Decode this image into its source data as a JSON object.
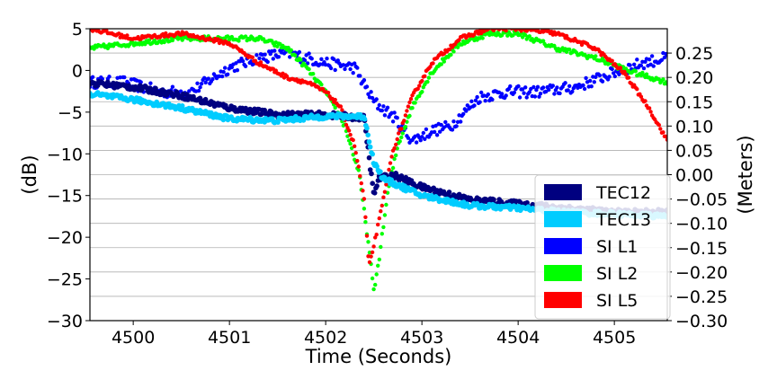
{
  "chart_data": {
    "type": "scatter",
    "xlabel": "Time (Seconds)",
    "ylabel_left": "(dB)",
    "ylabel_right": "(Meters)",
    "xlim": [
      4499.55,
      4505.55
    ],
    "ylim_left": [
      -30,
      5
    ],
    "ylim_right": [
      -0.3,
      0.3
    ],
    "x_ticks": [
      4500,
      4501,
      4502,
      4503,
      4504,
      4505
    ],
    "y_ticks_left": [
      5,
      0,
      -5,
      -10,
      -15,
      -20,
      -25,
      -30
    ],
    "y_ticks_right": [
      0.25,
      0.2,
      0.15,
      0.1,
      0.05,
      0.0,
      -0.05,
      -0.1,
      -0.15,
      -0.2,
      -0.25,
      -0.3
    ],
    "y_tick_labels_left": [
      "5",
      "0",
      "−5",
      "−10",
      "−15",
      "−20",
      "−25",
      "−30"
    ],
    "y_tick_labels_right": [
      "0.25",
      "0.20",
      "0.15",
      "0.10",
      "0.05",
      "0.00",
      "−0.05",
      "−0.10",
      "−0.15",
      "−0.20",
      "−0.25",
      "−0.30"
    ],
    "grid": "horizontal (right axis)",
    "legend_position": "bottom-right",
    "series": [
      {
        "name": "TEC12",
        "axis": "left",
        "color": "#000080",
        "x": [
          4499.55,
          4500.0,
          4500.5,
          4501.0,
          4501.5,
          4502.0,
          4502.4,
          4502.5,
          4502.55,
          4502.7,
          4503.0,
          4503.5,
          4504.0,
          4504.5,
          4505.0,
          4505.55
        ],
        "y": [
          -1.5,
          -2.0,
          -3.0,
          -4.5,
          -5.3,
          -5.3,
          -5.7,
          -15.0,
          -13.0,
          -12.5,
          -14.0,
          -15.5,
          -16.0,
          -16.5,
          -17.0,
          -17.0
        ]
      },
      {
        "name": "TEC13",
        "axis": "left",
        "color": "#00CCFF",
        "x": [
          4499.55,
          4500.0,
          4500.5,
          4501.0,
          4501.5,
          4502.0,
          4502.4,
          4502.5,
          4502.6,
          4502.8,
          4503.0,
          4503.5,
          4504.0,
          4504.5,
          4505.0,
          4505.55
        ],
        "y": [
          -2.8,
          -3.5,
          -4.5,
          -5.8,
          -6.0,
          -5.5,
          -5.5,
          -11.0,
          -13.0,
          -14.0,
          -15.0,
          -16.2,
          -16.5,
          -17.0,
          -17.2,
          -17.5
        ]
      },
      {
        "name": "SI L1",
        "axis": "right",
        "color": "#0000FF",
        "x": [
          4499.55,
          4499.9,
          4500.3,
          4500.6,
          4501.0,
          4501.3,
          4501.6,
          4502.0,
          4502.3,
          4502.5,
          4502.7,
          4502.9,
          4503.1,
          4503.3,
          4503.6,
          4503.9,
          4504.2,
          4504.6,
          4505.0,
          4505.3,
          4505.55
        ],
        "y": [
          0.19,
          0.19,
          0.17,
          0.17,
          0.22,
          0.24,
          0.25,
          0.23,
          0.22,
          0.15,
          0.12,
          0.07,
          0.09,
          0.1,
          0.16,
          0.17,
          0.17,
          0.18,
          0.21,
          0.23,
          0.24
        ]
      },
      {
        "name": "SI L2",
        "axis": "right",
        "color": "#00FF00",
        "x": [
          4499.55,
          4500.0,
          4500.5,
          4501.0,
          4501.3,
          4501.6,
          4501.8,
          4502.0,
          4502.2,
          4502.35,
          4502.45,
          4502.5,
          4502.55,
          4502.65,
          4502.75,
          4502.9,
          4503.1,
          4503.4,
          4503.7,
          4504.0,
          4504.4,
          4504.8,
          4505.2,
          4505.55
        ],
        "y": [
          0.26,
          0.27,
          0.28,
          0.28,
          0.28,
          0.26,
          0.22,
          0.17,
          0.1,
          0.0,
          -0.15,
          -0.24,
          -0.18,
          -0.03,
          0.06,
          0.14,
          0.21,
          0.27,
          0.29,
          0.29,
          0.26,
          0.24,
          0.21,
          0.19
        ]
      },
      {
        "name": "SI L5",
        "axis": "right",
        "color": "#FF0000",
        "x": [
          4499.55,
          4500.0,
          4500.5,
          4501.0,
          4501.3,
          4501.6,
          4501.8,
          4502.0,
          4502.15,
          4502.3,
          4502.4,
          4502.45,
          4502.55,
          4502.7,
          4502.9,
          4503.1,
          4503.4,
          4503.7,
          4504.0,
          4504.4,
          4504.8,
          4505.1,
          4505.35,
          4505.55
        ],
        "y": [
          0.3,
          0.28,
          0.29,
          0.27,
          0.23,
          0.2,
          0.19,
          0.17,
          0.14,
          0.06,
          -0.05,
          -0.19,
          -0.1,
          0.05,
          0.16,
          0.23,
          0.28,
          0.3,
          0.3,
          0.29,
          0.26,
          0.21,
          0.14,
          0.07
        ]
      }
    ]
  }
}
